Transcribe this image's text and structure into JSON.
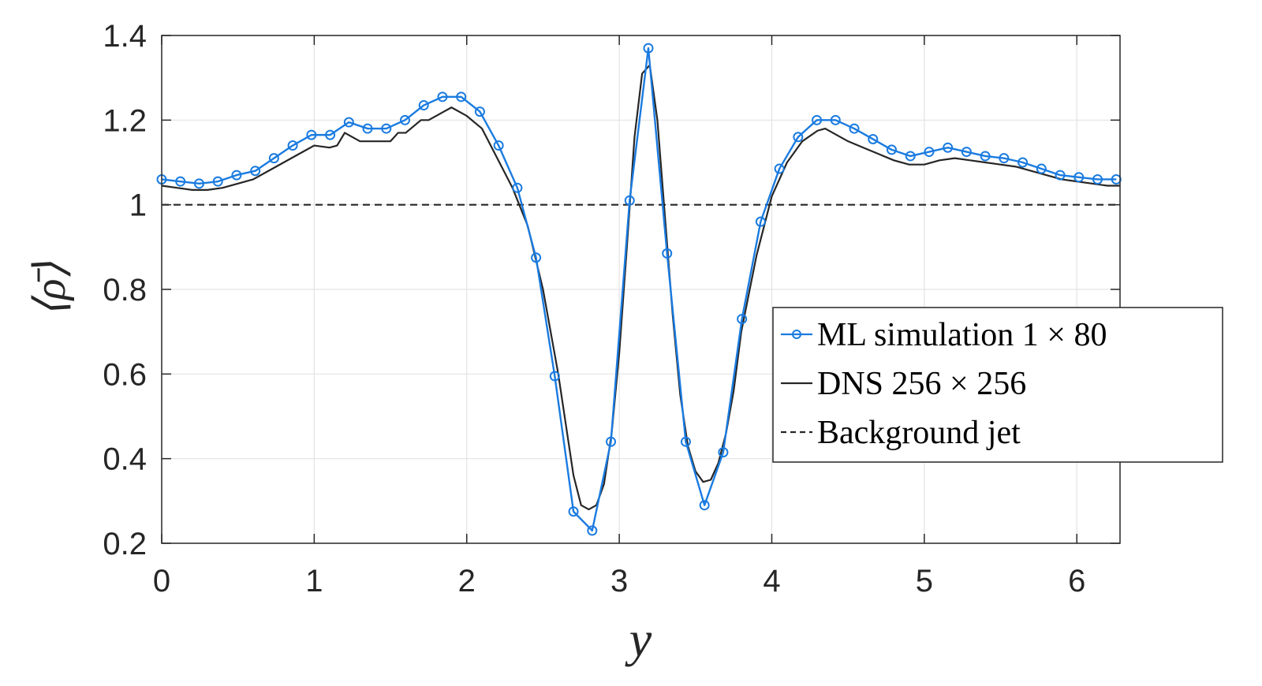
{
  "chart_data": {
    "type": "line",
    "xlabel": "y",
    "ylabel": "⟨ρ̄⟩",
    "xlim": [
      0,
      6.2832
    ],
    "ylim": [
      0.2,
      1.4
    ],
    "xticks": [
      "0",
      "1",
      "2",
      "3",
      "4",
      "5",
      "6"
    ],
    "yticks": [
      "0.2",
      "0.4",
      "0.6",
      "0.8",
      "1",
      "1.2",
      "1.4"
    ],
    "grid": true,
    "legend_position": "right",
    "series": [
      {
        "name": "ML simulation 1 × 80",
        "color": "#1a7be0",
        "style": "line-circle-markers",
        "x": [
          0,
          0.1227,
          0.2454,
          0.3682,
          0.4909,
          0.6136,
          0.7363,
          0.859,
          0.9818,
          1.1045,
          1.2272,
          1.3499,
          1.4726,
          1.5953,
          1.7181,
          1.8408,
          1.9635,
          2.0862,
          2.2089,
          2.3317,
          2.4544,
          2.5771,
          2.6998,
          2.8225,
          2.9452,
          3.068,
          3.1907,
          3.3134,
          3.4361,
          3.5588,
          3.6816,
          3.8043,
          3.927,
          4.0497,
          4.1724,
          4.2951,
          4.4179,
          4.5406,
          4.6633,
          4.786,
          4.9087,
          5.0315,
          5.1542,
          5.2769,
          5.3996,
          5.5223,
          5.645,
          5.7678,
          5.8905,
          6.0132,
          6.1359,
          6.2586
        ],
        "y": [
          1.06,
          1.055,
          1.05,
          1.055,
          1.07,
          1.08,
          1.11,
          1.14,
          1.165,
          1.165,
          1.195,
          1.18,
          1.18,
          1.2,
          1.235,
          1.255,
          1.255,
          1.22,
          1.14,
          1.04,
          0.875,
          0.595,
          0.275,
          0.23,
          0.44,
          1.01,
          1.37,
          0.885,
          0.44,
          0.29,
          0.415,
          0.73,
          0.96,
          1.085,
          1.16,
          1.2,
          1.2,
          1.18,
          1.155,
          1.13,
          1.115,
          1.125,
          1.135,
          1.125,
          1.115,
          1.11,
          1.1,
          1.085,
          1.07,
          1.065,
          1.06,
          1.06
        ]
      },
      {
        "name": "DNS 256 × 256",
        "color": "#262626",
        "style": "solid",
        "x": [
          0,
          0.1,
          0.2,
          0.3,
          0.4,
          0.5,
          0.6,
          0.7,
          0.8,
          0.9,
          1.0,
          1.1,
          1.15,
          1.2,
          1.25,
          1.3,
          1.4,
          1.5,
          1.55,
          1.6,
          1.7,
          1.75,
          1.8,
          1.85,
          1.9,
          2.0,
          2.1,
          2.2,
          2.3,
          2.4,
          2.5,
          2.6,
          2.65,
          2.7,
          2.75,
          2.8,
          2.85,
          2.9,
          2.95,
          3.0,
          3.05,
          3.1,
          3.15,
          3.2,
          3.25,
          3.3,
          3.35,
          3.4,
          3.45,
          3.5,
          3.55,
          3.6,
          3.65,
          3.7,
          3.75,
          3.8,
          3.9,
          4.0,
          4.1,
          4.2,
          4.3,
          4.35,
          4.4,
          4.5,
          4.6,
          4.7,
          4.8,
          4.9,
          5.0,
          5.1,
          5.2,
          5.3,
          5.4,
          5.5,
          5.6,
          5.7,
          5.8,
          5.9,
          6.0,
          6.1,
          6.2,
          6.2832
        ],
        "y": [
          1.045,
          1.04,
          1.035,
          1.035,
          1.04,
          1.05,
          1.06,
          1.08,
          1.1,
          1.12,
          1.14,
          1.135,
          1.14,
          1.17,
          1.16,
          1.15,
          1.15,
          1.15,
          1.17,
          1.17,
          1.2,
          1.2,
          1.21,
          1.22,
          1.23,
          1.21,
          1.18,
          1.11,
          1.04,
          0.95,
          0.8,
          0.6,
          0.48,
          0.36,
          0.29,
          0.28,
          0.29,
          0.34,
          0.46,
          0.65,
          0.9,
          1.16,
          1.31,
          1.33,
          1.2,
          0.97,
          0.74,
          0.55,
          0.43,
          0.37,
          0.345,
          0.35,
          0.39,
          0.46,
          0.56,
          0.7,
          0.88,
          1.02,
          1.1,
          1.15,
          1.175,
          1.18,
          1.17,
          1.15,
          1.135,
          1.12,
          1.105,
          1.095,
          1.095,
          1.105,
          1.11,
          1.105,
          1.1,
          1.095,
          1.09,
          1.08,
          1.07,
          1.06,
          1.055,
          1.05,
          1.045,
          1.045
        ]
      },
      {
        "name": "Background jet",
        "color": "#262626",
        "style": "dashed",
        "x": [
          0,
          6.2832
        ],
        "y": [
          1,
          1
        ]
      }
    ]
  }
}
